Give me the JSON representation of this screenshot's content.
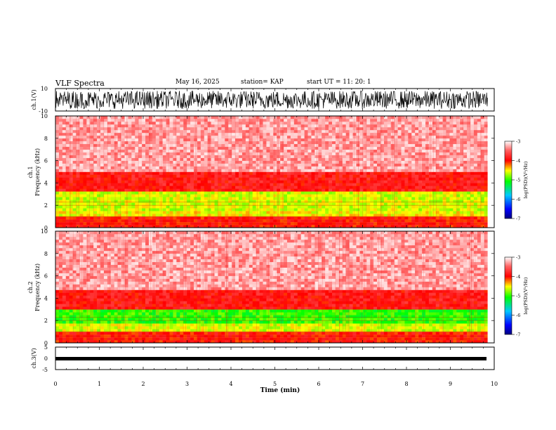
{
  "header": {
    "title": "VLF Spectra",
    "date": "May 16, 2025",
    "station": "station= KAP",
    "start": "start  UT  =   11: 20: 1"
  },
  "chart_data": [
    {
      "type": "line",
      "panel": "ch1-waveform",
      "ylabel": "ch.1(V)",
      "ylim": [
        -10,
        10
      ],
      "yticks": [
        "10",
        "-10"
      ],
      "x_range_min": [
        0,
        9.85
      ],
      "amplitude_range_v": [
        -8,
        8
      ]
    },
    {
      "type": "heatmap",
      "panel": "ch1-spectrogram",
      "ylabel": "ch.1",
      "ylabel2": "Frequency (kHz)",
      "ylim_khz": [
        0,
        10
      ],
      "yticks": [
        "0",
        "2",
        "4",
        "6",
        "8",
        "10"
      ],
      "bands_khz": [
        {
          "from": 0.0,
          "to": 0.9,
          "level": -4.0
        },
        {
          "from": 0.9,
          "to": 1.4,
          "level": -4.6
        },
        {
          "from": 1.4,
          "to": 3.2,
          "level": -4.7
        },
        {
          "from": 3.2,
          "to": 5.0,
          "level": -3.9
        },
        {
          "from": 5.0,
          "to": 10.0,
          "level": -3.3
        }
      ],
      "colorbar": {
        "label": "log(PSD)(V²/Hz)",
        "ticks": [
          "-3",
          "-4",
          "-5",
          "-6",
          "-7"
        ],
        "range": [
          -7,
          -3
        ]
      }
    },
    {
      "type": "heatmap",
      "panel": "ch2-spectrogram",
      "ylabel": "ch.2",
      "ylabel2": "Frequency (kHz)",
      "ylim_khz": [
        0,
        10
      ],
      "yticks": [
        "0",
        "2",
        "4",
        "6",
        "8",
        "10"
      ],
      "bands_khz": [
        {
          "from": 0.0,
          "to": 0.9,
          "level": -4.0
        },
        {
          "from": 0.9,
          "to": 1.8,
          "level": -4.7
        },
        {
          "from": 1.8,
          "to": 3.0,
          "level": -5.1
        },
        {
          "from": 3.0,
          "to": 4.8,
          "level": -3.9
        },
        {
          "from": 4.8,
          "to": 10.0,
          "level": -3.3
        }
      ],
      "colorbar": {
        "label": "log(PSD)(V²/Hz)",
        "ticks": [
          "-3",
          "-4",
          "-5",
          "-6",
          "-7"
        ],
        "range": [
          -7,
          -3
        ]
      }
    },
    {
      "type": "line",
      "panel": "ch3-waveform",
      "ylabel": "ch.3(V)",
      "ylim": [
        -5,
        5
      ],
      "yticks": [
        "5",
        "0",
        "-5"
      ],
      "x_range_min": [
        0,
        9.85
      ],
      "amplitude_range_v": [
        -1.2,
        0.4
      ]
    }
  ],
  "xaxis": {
    "label": "Time (min)",
    "ticks": [
      "0",
      "1",
      "2",
      "3",
      "4",
      "5",
      "6",
      "7",
      "8",
      "9",
      "10"
    ],
    "range": [
      0,
      10
    ]
  }
}
